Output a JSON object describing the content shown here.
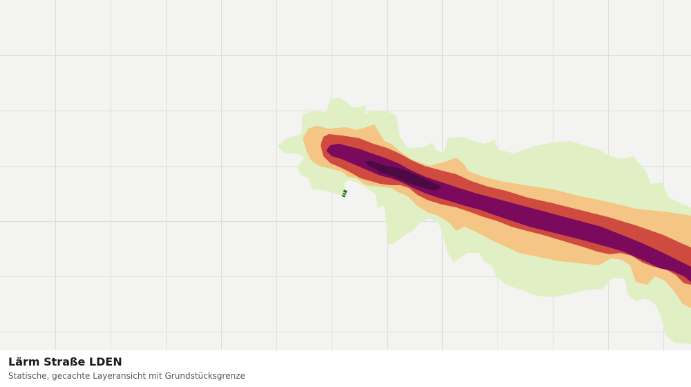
{
  "layer": {
    "title": "Lärm Straße LDEN",
    "subtitle": "Statische, gecachte Layeransicht mit Grundstücksgrenze"
  },
  "map": {
    "background_color": "#f3f4f2",
    "grid_color": "#dcdedb",
    "noise_zones": [
      {
        "name": "zone-1",
        "color": "#e1f0c4"
      },
      {
        "name": "zone-2",
        "color": "#f4c584"
      },
      {
        "name": "zone-3",
        "color": "#cf4b3f"
      },
      {
        "name": "zone-4",
        "color": "#7b0a5c"
      },
      {
        "name": "zone-5",
        "color": "#4c0a45"
      }
    ],
    "parcel_marker": {
      "color": "#2f6b2c",
      "icon": "parcel-boundary-icon"
    }
  }
}
